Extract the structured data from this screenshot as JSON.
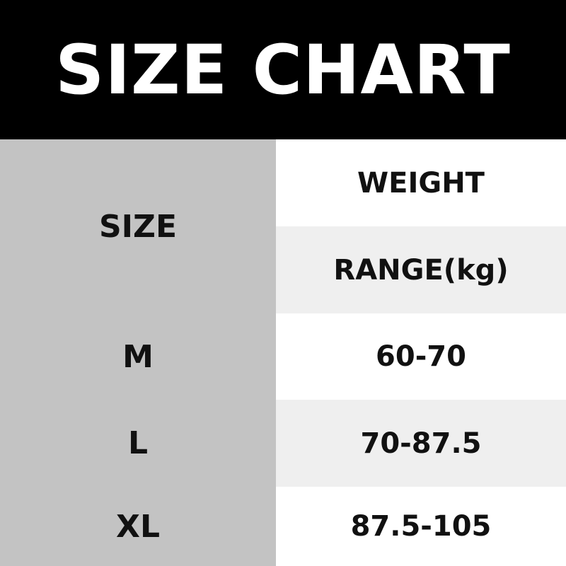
{
  "title": "SIZE CHART",
  "header": {
    "size_label": "SIZE",
    "weight_line1": "WEIGHT",
    "weight_line2": "RANGE(kg)"
  },
  "rows": [
    {
      "size": "M",
      "weight": "60-70"
    },
    {
      "size": "L",
      "weight": "70-87.5"
    },
    {
      "size": "XL",
      "weight": "87.5-105"
    }
  ],
  "colors": {
    "header_bg": "#000000",
    "size_column_bg": "#c3c3c3",
    "alt_row_bg": "#efefef"
  }
}
